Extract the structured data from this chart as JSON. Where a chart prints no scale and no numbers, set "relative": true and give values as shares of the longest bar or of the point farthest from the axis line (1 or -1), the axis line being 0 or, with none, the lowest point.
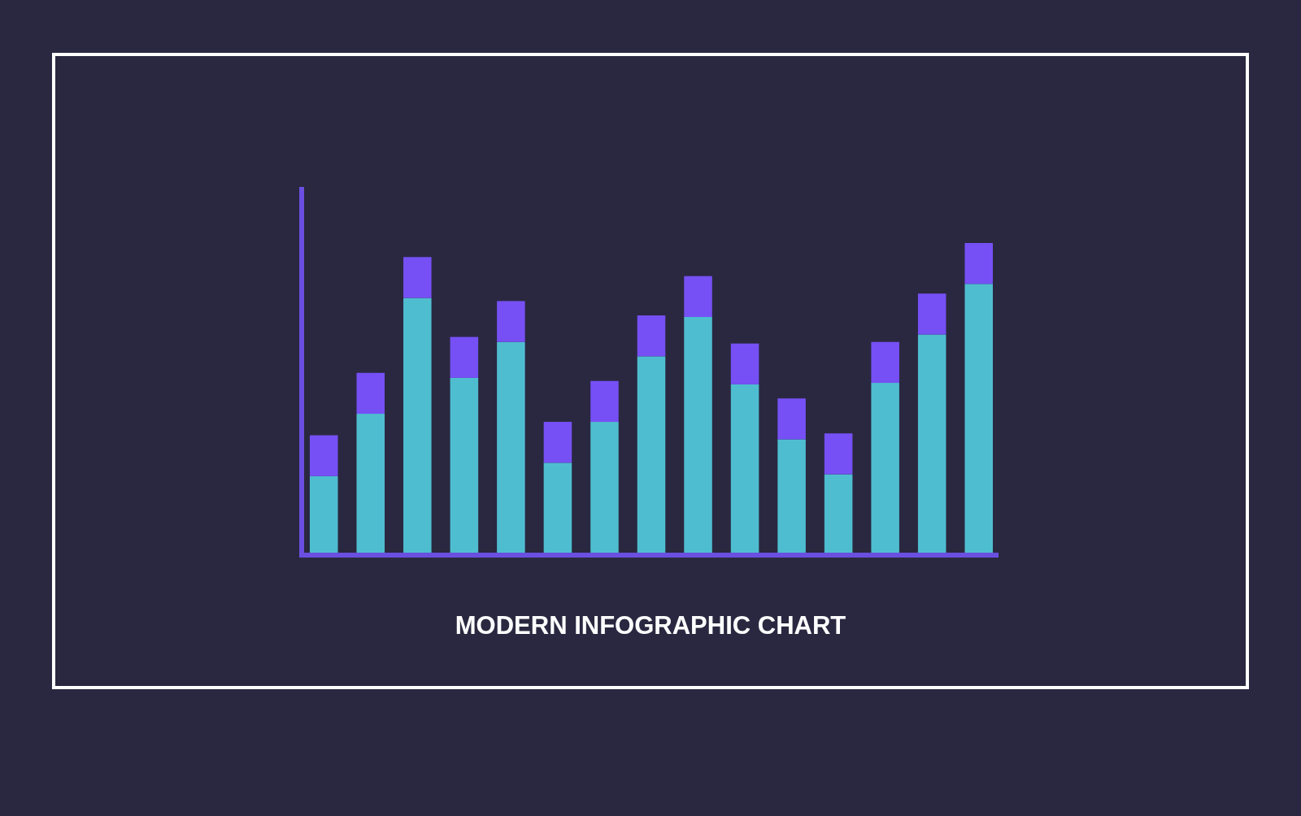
{
  "chart_data": {
    "type": "bar",
    "title": "MODERN INFOGRAPHIC CHART",
    "relative": true,
    "stacked": true,
    "categories": [
      null,
      null,
      null,
      null,
      null,
      null,
      null,
      null,
      null,
      null,
      null,
      null,
      null,
      null,
      null
    ],
    "series": [
      {
        "color": "#4fbdd0",
        "values": [
          0.253,
          0.453,
          0.824,
          0.568,
          0.683,
          0.296,
          0.427,
          0.637,
          0.763,
          0.547,
          0.371,
          0.259,
          0.552,
          0.707,
          0.869
        ]
      },
      {
        "color": "#7650f5",
        "values": [
          0.131,
          0.131,
          0.131,
          0.131,
          0.131,
          0.131,
          0.131,
          0.131,
          0.131,
          0.131,
          0.131,
          0.131,
          0.131,
          0.131,
          0.131
        ]
      }
    ]
  }
}
